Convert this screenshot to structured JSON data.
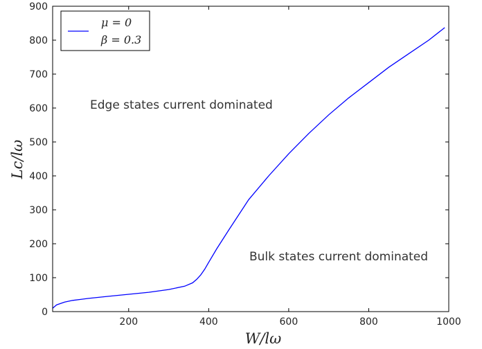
{
  "chart_data": {
    "type": "line",
    "title": "",
    "xlabel": "W/lω",
    "ylabel": "Lc/lω",
    "xlim": [
      10,
      1000
    ],
    "ylim": [
      0,
      900
    ],
    "xticks": [
      "200",
      "400",
      "600",
      "800",
      "1000"
    ],
    "yticks": [
      "0",
      "100",
      "200",
      "300",
      "400",
      "500",
      "600",
      "700",
      "800",
      "900"
    ],
    "grid": false,
    "legend_position": "top-left",
    "legend": [
      "μ = 0",
      "β = 0.3"
    ],
    "line_color": "#0000ff",
    "annotations": [
      "Edge states current dominated",
      "Bulk states current dominated"
    ],
    "series": [
      {
        "x": [
          10,
          20,
          40,
          60,
          80,
          100,
          150,
          200,
          250,
          300,
          340,
          360,
          370,
          380,
          390,
          400,
          420,
          450,
          500,
          550,
          600,
          650,
          700,
          750,
          800,
          850,
          900,
          950,
          990
        ],
        "y": [
          10,
          20,
          28,
          33,
          36,
          39,
          45,
          51,
          57,
          65,
          75,
          85,
          95,
          108,
          125,
          145,
          185,
          240,
          330,
          400,
          465,
          525,
          580,
          630,
          675,
          720,
          760,
          800,
          837
        ]
      }
    ]
  }
}
